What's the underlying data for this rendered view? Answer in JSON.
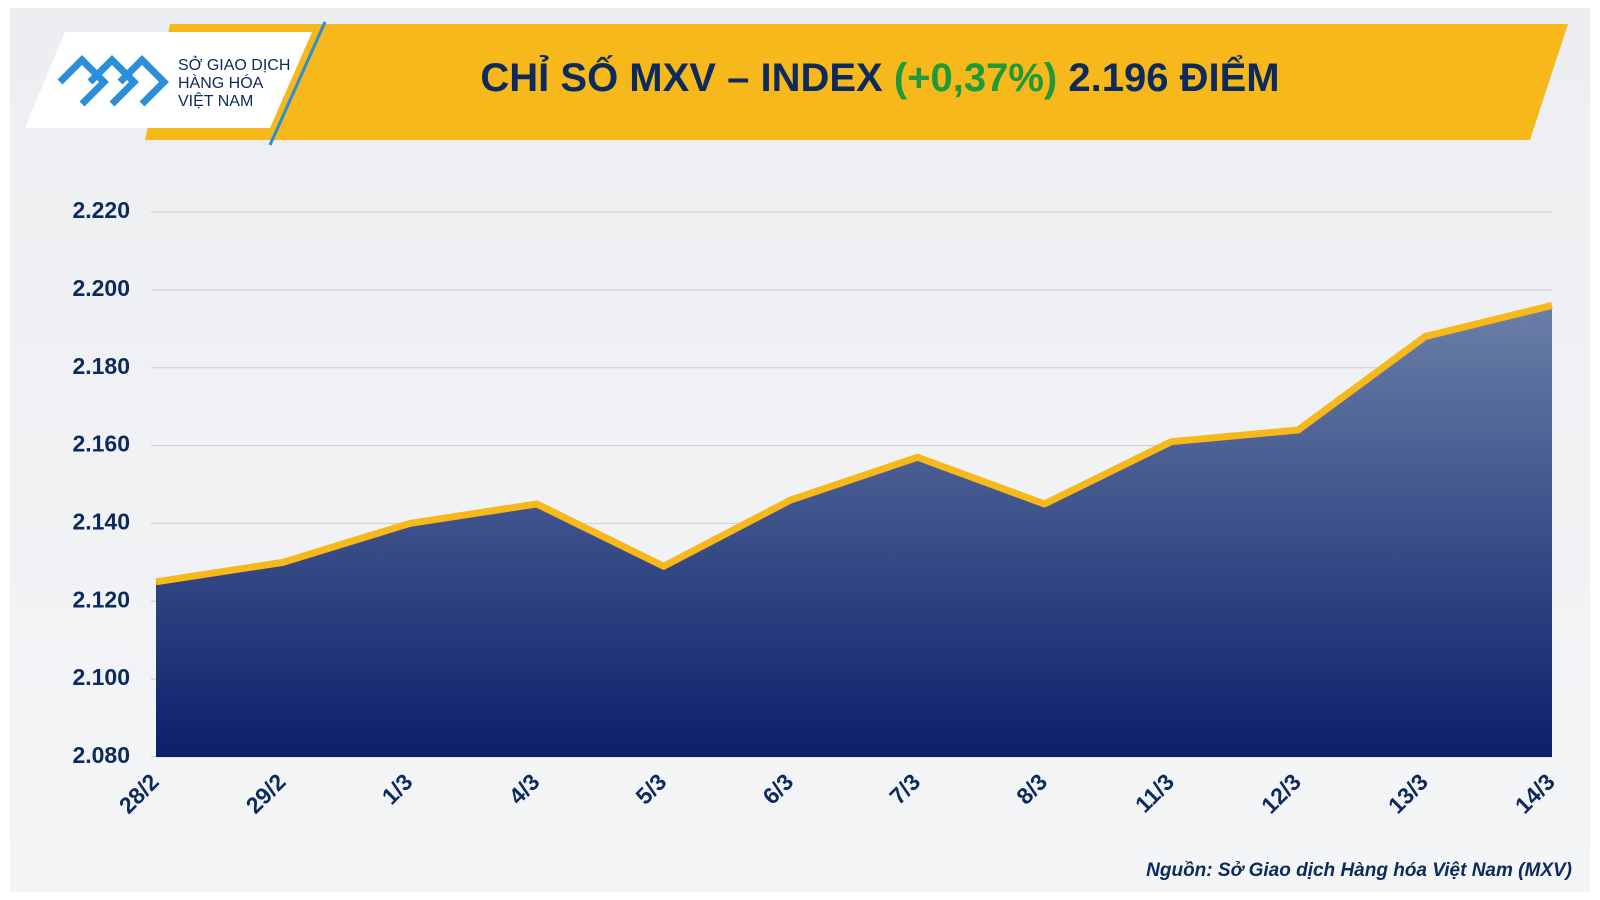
{
  "chart_data": {
    "type": "area",
    "title_parts": [
      {
        "text": "CHỈ SỐ MXV – INDEX",
        "color": "#0d2a5c"
      },
      {
        "text": "(+0,37%)",
        "color": "#1f9a3a"
      },
      {
        "text": "2.196 ĐIỂM",
        "color": "#0d2a5c"
      }
    ],
    "logo_lines": [
      "SỞ GIAO DỊCH",
      "HÀNG HÓA",
      "VIỆT NAM"
    ],
    "source": "Nguồn: Sở Giao dịch Hàng hóa Việt Nam (MXV)",
    "categories": [
      "28/2",
      "29/2",
      "1/3",
      "4/3",
      "5/3",
      "6/3",
      "7/3",
      "8/3",
      "11/3",
      "12/3",
      "13/3",
      "14/3"
    ],
    "values": [
      2125,
      2130,
      2140,
      2145,
      2129,
      2146,
      2157,
      2145,
      2161,
      2164,
      2188,
      2196
    ],
    "color": "#f6b81a",
    "area_colors": [
      "#6b7fa8",
      "#0b1f6b"
    ],
    "ylim": [
      2080,
      2220
    ],
    "yticks": [
      {
        "value": 2080,
        "label": "2.080"
      },
      {
        "value": 2100,
        "label": "2.100"
      },
      {
        "value": 2120,
        "label": "2.120"
      },
      {
        "value": 2140,
        "label": "2.140"
      },
      {
        "value": 2160,
        "label": "2.160"
      },
      {
        "value": 2180,
        "label": "2.180"
      },
      {
        "value": 2200,
        "label": "2.200"
      },
      {
        "value": 2220,
        "label": "2.220"
      }
    ],
    "grid": true
  }
}
